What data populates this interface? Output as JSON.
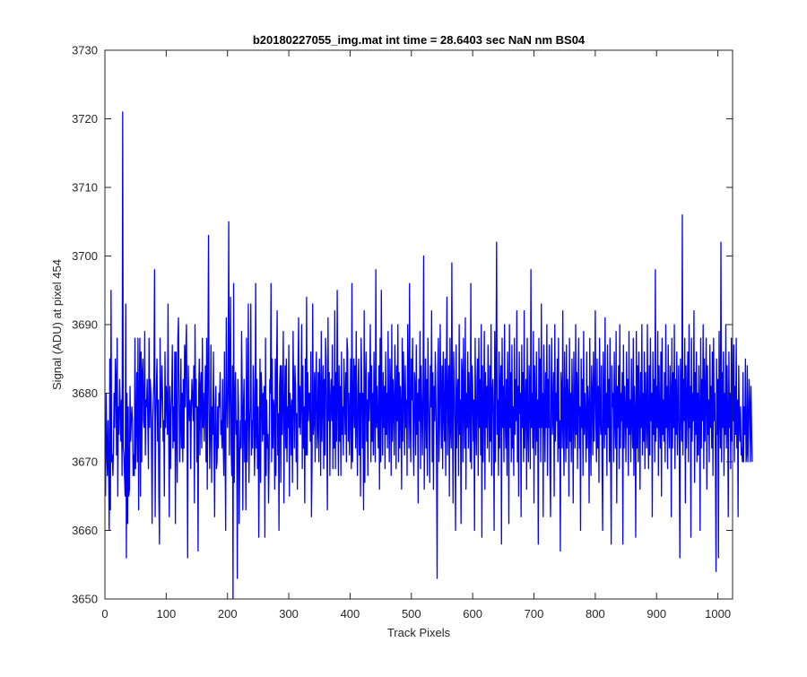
{
  "chart_data": {
    "type": "line",
    "title": "b20180227055_img.mat int time = 28.6403 sec  NaN nm BS04",
    "xlabel": "Track Pixels",
    "ylabel": "Signal (ADU) at pixel 454",
    "xlim": [
      0,
      1024
    ],
    "ylim": [
      3650,
      3730
    ],
    "xticks": [
      0,
      100,
      200,
      300,
      400,
      500,
      600,
      700,
      800,
      900,
      1000
    ],
    "yticks": [
      3650,
      3660,
      3670,
      3680,
      3690,
      3700,
      3710,
      3720,
      3730
    ],
    "grid": false,
    "legend": "none",
    "series": [
      {
        "color": "#0000ff",
        "x_start": 1,
        "x_step": 1,
        "values": [
          3665,
          3680,
          3672,
          3668,
          3676,
          3670,
          3660,
          3685,
          3663,
          3695,
          3670,
          3671,
          3668,
          3672,
          3680,
          3675,
          3685,
          3682,
          3671,
          3688,
          3665,
          3678,
          3674,
          3682,
          3678,
          3673,
          3679,
          3668,
          3721,
          3672,
          3671,
          3668,
          3665,
          3693,
          3656,
          3680,
          3661,
          3678,
          3665,
          3666,
          3681,
          3673,
          3676,
          3678,
          3676,
          3668,
          3671,
          3668,
          3688,
          3669,
          3675,
          3683,
          3670,
          3688,
          3663,
          3679,
          3688,
          3665,
          3686,
          3670,
          3683,
          3685,
          3676,
          3675,
          3689,
          3671,
          3679,
          3678,
          3682,
          3676,
          3669,
          3688,
          3675,
          3682,
          3680,
          3673,
          3661,
          3676,
          3679,
          3682,
          3698,
          3662,
          3676,
          3681,
          3685,
          3673,
          3679,
          3665,
          3658,
          3688,
          3675,
          3679,
          3684,
          3680,
          3673,
          3676,
          3665,
          3686,
          3675,
          3681,
          3679,
          3674,
          3693,
          3675,
          3662,
          3681,
          3669,
          3677,
          3680,
          3687,
          3672,
          3678,
          3673,
          3686,
          3661,
          3686,
          3675,
          3667,
          3688,
          3691,
          3680,
          3670,
          3675,
          3685,
          3672,
          3680,
          3670,
          3682,
          3672,
          3687,
          3678,
          3686,
          3690,
          3676,
          3656,
          3684,
          3678,
          3676,
          3679,
          3669,
          3678,
          3682,
          3679,
          3676,
          3684,
          3664,
          3690,
          3678,
          3682,
          3670,
          3678,
          3657,
          3680,
          3685,
          3671,
          3681,
          3683,
          3672,
          3688,
          3675,
          3680,
          3673,
          3678,
          3684,
          3670,
          3688,
          3666,
          3682,
          3703,
          3678,
          3669,
          3675,
          3687,
          3667,
          3678,
          3674,
          3686,
          3673,
          3662,
          3678,
          3681,
          3669,
          3670,
          3678,
          3672,
          3680,
          3678,
          3683,
          3674,
          3676,
          3672,
          3682,
          3673,
          3668,
          3686,
          3673,
          3660,
          3691,
          3680,
          3675,
          3681,
          3705,
          3671,
          3682,
          3694,
          3672,
          3668,
          3684,
          3650,
          3696,
          3667,
          3679,
          3683,
          3674,
          3676,
          3653,
          3682,
          3678,
          3661,
          3670,
          3676,
          3672,
          3689,
          3680,
          3663,
          3678,
          3682,
          3670,
          3676,
          3663,
          3688,
          3670,
          3678,
          3693,
          3667,
          3675,
          3678,
          3693,
          3671,
          3676,
          3672,
          3684,
          3680,
          3668,
          3674,
          3696,
          3672,
          3682,
          3669,
          3678,
          3659,
          3671,
          3685,
          3667,
          3683,
          3680,
          3673,
          3680,
          3674,
          3681,
          3659,
          3688,
          3668,
          3679,
          3672,
          3674,
          3664,
          3671,
          3682,
          3680,
          3696,
          3670,
          3685,
          3672,
          3679,
          3678,
          3666,
          3685,
          3668,
          3683,
          3692,
          3671,
          3677,
          3660,
          3681,
          3684,
          3667,
          3684,
          3674,
          3680,
          3689,
          3664,
          3677,
          3684,
          3672,
          3685,
          3670,
          3678,
          3675,
          3687,
          3665,
          3680,
          3678,
          3671,
          3679,
          3667,
          3689,
          3680,
          3672,
          3684,
          3681,
          3670,
          3677,
          3666,
          3683,
          3691,
          3675,
          3681,
          3674,
          3679,
          3690,
          3669,
          3684,
          3672,
          3678,
          3664,
          3685,
          3671,
          3694,
          3671,
          3683,
          3676,
          3680,
          3680,
          3673,
          3686,
          3662,
          3670,
          3693,
          3674,
          3676,
          3683,
          3670,
          3681,
          3686,
          3672,
          3675,
          3683,
          3670,
          3685,
          3681,
          3668,
          3689,
          3673,
          3680,
          3684,
          3669,
          3682,
          3671,
          3688,
          3685,
          3674,
          3663,
          3691,
          3676,
          3683,
          3668,
          3679,
          3682,
          3676,
          3687,
          3669,
          3681,
          3672,
          3692,
          3669,
          3683,
          3673,
          3695,
          3679,
          3668,
          3684,
          3673,
          3681,
          3668,
          3686,
          3674,
          3678,
          3671,
          3685,
          3679,
          3674,
          3683,
          3670,
          3688,
          3686,
          3673,
          3680,
          3671,
          3677,
          3685,
          3669,
          3696,
          3670,
          3678,
          3685,
          3675,
          3684,
          3672,
          3689,
          3675,
          3668,
          3681,
          3685,
          3671,
          3680,
          3665,
          3688,
          3682,
          3672,
          3680,
          3663,
          3692,
          3667,
          3681,
          3686,
          3673,
          3679,
          3668,
          3683,
          3676,
          3681,
          3690,
          3670,
          3684,
          3673,
          3680,
          3671,
          3686,
          3677,
          3670,
          3698,
          3675,
          3681,
          3676,
          3672,
          3684,
          3666,
          3688,
          3670,
          3695,
          3678,
          3671,
          3683,
          3675,
          3681,
          3669,
          3686,
          3674,
          3680,
          3672,
          3689,
          3677,
          3670,
          3685,
          3681,
          3668,
          3690,
          3673,
          3682,
          3678,
          3671,
          3687,
          3680,
          3669,
          3684,
          3676,
          3690,
          3670,
          3683,
          3672,
          3681,
          3678,
          3666,
          3688,
          3673,
          3686,
          3680,
          3671,
          3684,
          3675,
          3679,
          3668,
          3690,
          3682,
          3672,
          3696,
          3676,
          3670,
          3685,
          3679,
          3688,
          3673,
          3668,
          3683,
          3681,
          3671,
          3687,
          3674,
          3680,
          3664,
          3682,
          3676,
          3689,
          3669,
          3684,
          3678,
          3671,
          3680,
          3700,
          3666,
          3677,
          3685,
          3672,
          3682,
          3668,
          3688,
          3680,
          3674,
          3667,
          3684,
          3678,
          3692,
          3670,
          3683,
          3666,
          3681,
          3676,
          3686,
          3679,
          3672,
          3653,
          3683,
          3688,
          3670,
          3675,
          3690,
          3680,
          3672,
          3684,
          3669,
          3686,
          3677,
          3673,
          3685,
          3668,
          3681,
          3694,
          3671,
          3680,
          3684,
          3665,
          3688,
          3675,
          3672,
          3699,
          3676,
          3664,
          3686,
          3681,
          3675,
          3660,
          3687,
          3672,
          3680,
          3682,
          3668,
          3690,
          3674,
          3679,
          3661,
          3685,
          3683,
          3670,
          3688,
          3677,
          3672,
          3691,
          3666,
          3680,
          3675,
          3686,
          3672,
          3683,
          3678,
          3670,
          3696,
          3669,
          3684,
          3681,
          3673,
          3679,
          3660,
          3688,
          3676,
          3671,
          3682,
          3685,
          3668,
          3688,
          3675,
          3682,
          3671,
          3690,
          3659,
          3684,
          3670,
          3678,
          3689,
          3666,
          3683,
          3675,
          3681,
          3672,
          3687,
          3679,
          3670,
          3684,
          3673,
          3690,
          3668,
          3680,
          3682,
          3676,
          3660,
          3689,
          3670,
          3683,
          3702,
          3674,
          3679,
          3668,
          3686,
          3672,
          3681,
          3684,
          3658,
          3688,
          3675,
          3681,
          3670,
          3690,
          3676,
          3672,
          3682,
          3668,
          3686,
          3679,
          3661,
          3690,
          3675,
          3683,
          3670,
          3687,
          3672,
          3678,
          3668,
          3688,
          3674,
          3682,
          3676,
          3692,
          3670,
          3681,
          3665,
          3686,
          3677,
          3680,
          3662,
          3687,
          3675,
          3683,
          3670,
          3692,
          3672,
          3678,
          3682,
          3666,
          3688,
          3675,
          3670,
          3684,
          3681,
          3669,
          3698,
          3675,
          3680,
          3672,
          3689,
          3664,
          3684,
          3678,
          3671,
          3686,
          3673,
          3679,
          3658,
          3688,
          3675,
          3685,
          3670,
          3693,
          3675,
          3680,
          3662,
          3687,
          3678,
          3670,
          3683,
          3675,
          3690,
          3668,
          3682,
          3675,
          3687,
          3670,
          3662,
          3681,
          3688,
          3674,
          3677,
          3683,
          3665,
          3690,
          3673,
          3680,
          3676,
          3685,
          3670,
          3688,
          3672,
          3676,
          3657,
          3683,
          3680,
          3672,
          3692,
          3675,
          3668,
          3686,
          3678,
          3670,
          3687,
          3672,
          3682,
          3679,
          3665,
          3688,
          3673,
          3680,
          3670,
          3685,
          3678,
          3664,
          3686,
          3677,
          3672,
          3690,
          3674,
          3683,
          3669,
          3680,
          3688,
          3672,
          3678,
          3660,
          3685,
          3675,
          3682,
          3668,
          3689,
          3674,
          3680,
          3676,
          3670,
          3686,
          3672,
          3681,
          3678,
          3664,
          3688,
          3675,
          3668,
          3684,
          3680,
          3671,
          3686,
          3673,
          3679,
          3692,
          3676,
          3670,
          3685,
          3672,
          3681,
          3667,
          3688,
          3676,
          3674,
          3684,
          3670,
          3660,
          3686,
          3678,
          3672,
          3691,
          3674,
          3680,
          3668,
          3687,
          3675,
          3682,
          3670,
          3688,
          3672,
          3658,
          3684,
          3678,
          3680,
          3670,
          3686,
          3676,
          3672,
          3689,
          3664,
          3681,
          3675,
          3684,
          3669,
          3690,
          3672,
          3680,
          3676,
          3683,
          3658,
          3687,
          3672,
          3681,
          3677,
          3670,
          3686,
          3675,
          3682,
          3668,
          3689,
          3674,
          3679,
          3670,
          3685,
          3676,
          3672,
          3688,
          3668,
          3681,
          3677,
          3659,
          3689,
          3672,
          3684,
          3670,
          3686,
          3678,
          3666,
          3683,
          3675,
          3690,
          3671,
          3680,
          3673,
          3686,
          3669,
          3683,
          3677,
          3672,
          3690,
          3675,
          3669,
          3684,
          3671,
          3688,
          3676,
          3680,
          3662,
          3686,
          3674,
          3682,
          3670,
          3698,
          3673,
          3681,
          3675,
          3689,
          3668,
          3684,
          3676,
          3672,
          3686,
          3665,
          3688,
          3674,
          3679,
          3673,
          3683,
          3670,
          3690,
          3675,
          3681,
          3669,
          3687,
          3676,
          3672,
          3684,
          3680,
          3662,
          3688,
          3672,
          3683,
          3675,
          3690,
          3669,
          3682,
          3674,
          3686,
          3671,
          3678,
          3684,
          3672,
          3656,
          3685,
          3680,
          3673,
          3706,
          3671,
          3682,
          3676,
          3688,
          3664,
          3684,
          3672,
          3679,
          3686,
          3670,
          3690,
          3675,
          3681,
          3659,
          3688,
          3673,
          3680,
          3676,
          3692,
          3667,
          3683,
          3674,
          3686,
          3670,
          3680,
          3671,
          3684,
          3677,
          3660,
          3688,
          3672,
          3682,
          3676,
          3690,
          3669,
          3685,
          3673,
          3680,
          3688,
          3666,
          3684,
          3674,
          3679,
          3670,
          3687,
          3675,
          3681,
          3672,
          3686,
          3668,
          3688,
          3676,
          3680,
          3670,
          3654,
          3685,
          3674,
          3682,
          3656,
          3689,
          3679,
          3672,
          3702,
          3670,
          3683,
          3675,
          3686,
          3668,
          3680,
          3674,
          3690,
          3672,
          3684,
          3677,
          3662,
          3686,
          3675,
          3680,
          3669,
          3688,
          3673,
          3682,
          3676,
          3687,
          3670,
          3681,
          3674,
          3688,
          3672,
          3679,
          3662,
          3684,
          3676,
          3673,
          3678,
          3671,
          3672,
          3670,
          3683,
          3670,
          3678,
          3674,
          3685,
          3670,
          3671,
          3684,
          3670,
          3675,
          3682,
          3678,
          3670,
          3681,
          3675,
          3670
        ]
      }
    ]
  }
}
